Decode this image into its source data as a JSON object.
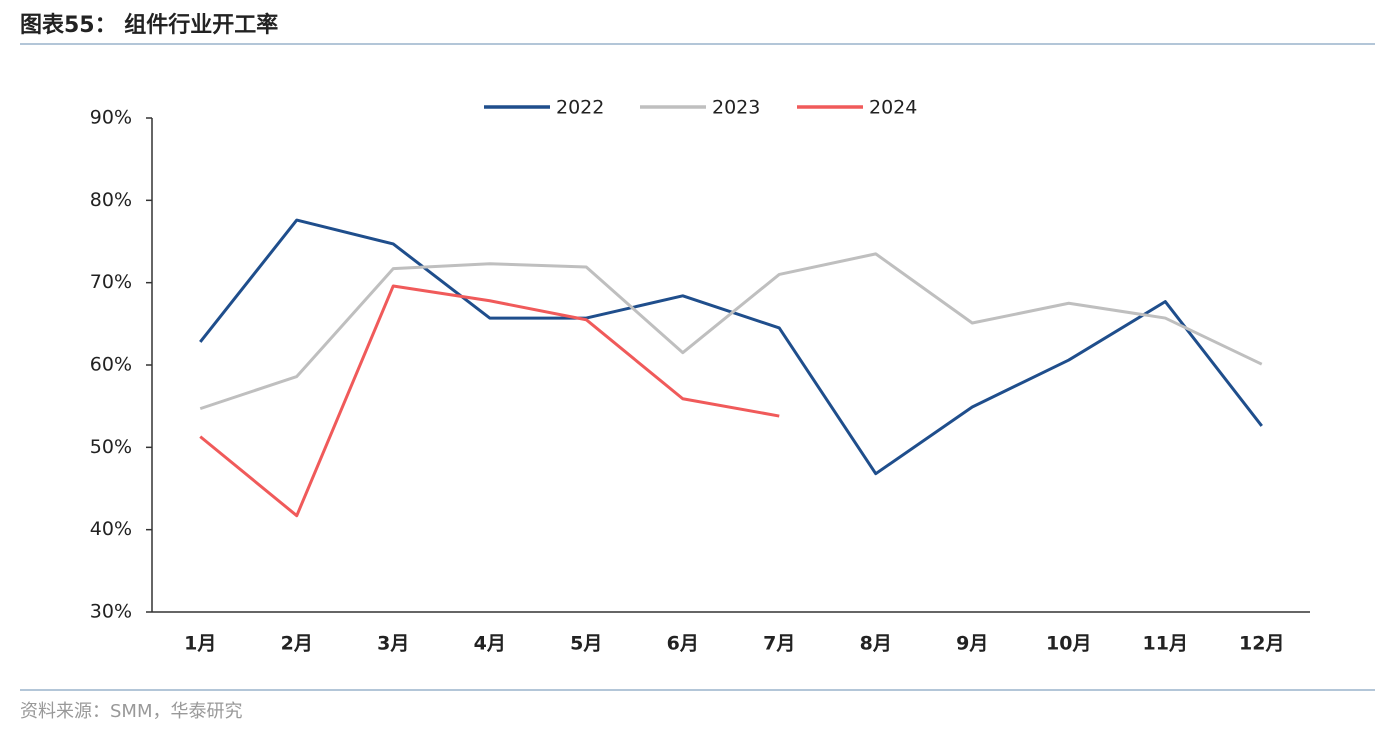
{
  "title": "图表55：  组件行业开工率",
  "source": "资料来源：SMM，华泰研究",
  "chart_data": {
    "type": "line",
    "categories": [
      "1月",
      "2月",
      "3月",
      "4月",
      "5月",
      "6月",
      "7月",
      "8月",
      "9月",
      "10月",
      "11月",
      "12月"
    ],
    "series": [
      {
        "name": "2022",
        "color": "#1f4e8c",
        "values": [
          62.8,
          77.6,
          74.7,
          65.7,
          65.7,
          68.4,
          64.5,
          46.8,
          54.9,
          60.6,
          67.7,
          52.6
        ]
      },
      {
        "name": "2023",
        "color": "#bfbfbf",
        "values": [
          54.7,
          58.6,
          71.7,
          72.3,
          71.9,
          61.5,
          71.0,
          73.5,
          65.1,
          67.5,
          65.7,
          60.1
        ]
      },
      {
        "name": "2024",
        "color": "#f05a5a",
        "values": [
          51.3,
          41.7,
          69.6,
          67.8,
          65.5,
          55.9,
          53.8,
          null,
          null,
          null,
          null,
          null
        ]
      }
    ],
    "ylim": [
      30,
      90
    ],
    "yticks": [
      {
        "value": 30,
        "label": "30%"
      },
      {
        "value": 40,
        "label": "40%"
      },
      {
        "value": 50,
        "label": "50%"
      },
      {
        "value": 60,
        "label": "60%"
      },
      {
        "value": 70,
        "label": "70%"
      },
      {
        "value": 80,
        "label": "80%"
      },
      {
        "value": 90,
        "label": "90%"
      }
    ],
    "legend": "top"
  }
}
